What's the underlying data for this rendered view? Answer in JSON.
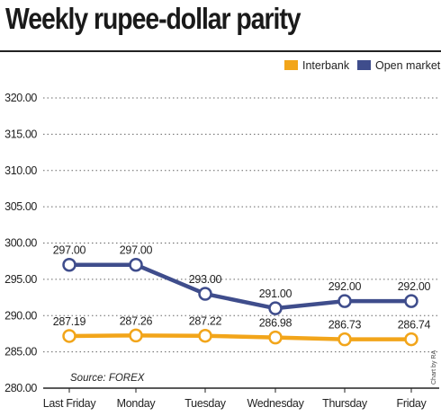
{
  "title": "Weekly rupee-dollar parity",
  "source": "Source: FOREX",
  "credit": "Chart by RA",
  "colors": {
    "interbank": "#f2a51a",
    "open_market": "#3f4d8c",
    "grid": "#666666",
    "text": "#222222"
  },
  "chart_data": {
    "type": "line",
    "title": "Weekly rupee-dollar parity",
    "xlabel": "",
    "ylabel": "",
    "categories": [
      "Last Friday",
      "Monday",
      "Tuesday",
      "Wednesday",
      "Thursday",
      "Friday"
    ],
    "ylim": [
      280,
      320
    ],
    "yticks": [
      "280.00",
      "285.00",
      "290.00",
      "295.00",
      "300.00",
      "305.00",
      "310.00",
      "315.00",
      "320.00"
    ],
    "grid": true,
    "legend": "top-right",
    "series": [
      {
        "name": "Interbank",
        "color": "#f2a51a",
        "values": [
          287.19,
          287.26,
          287.22,
          286.98,
          286.73,
          286.74
        ],
        "labels": [
          "287.19",
          "287.26",
          "287.22",
          "286.98",
          "286.73",
          "286.74"
        ]
      },
      {
        "name": "Open market",
        "color": "#3f4d8c",
        "values": [
          297.0,
          297.0,
          293.0,
          291.0,
          292.0,
          292.0
        ],
        "labels": [
          "297.00",
          "297.00",
          "293.00",
          "291.00",
          "292.00",
          "292.00"
        ]
      }
    ]
  }
}
